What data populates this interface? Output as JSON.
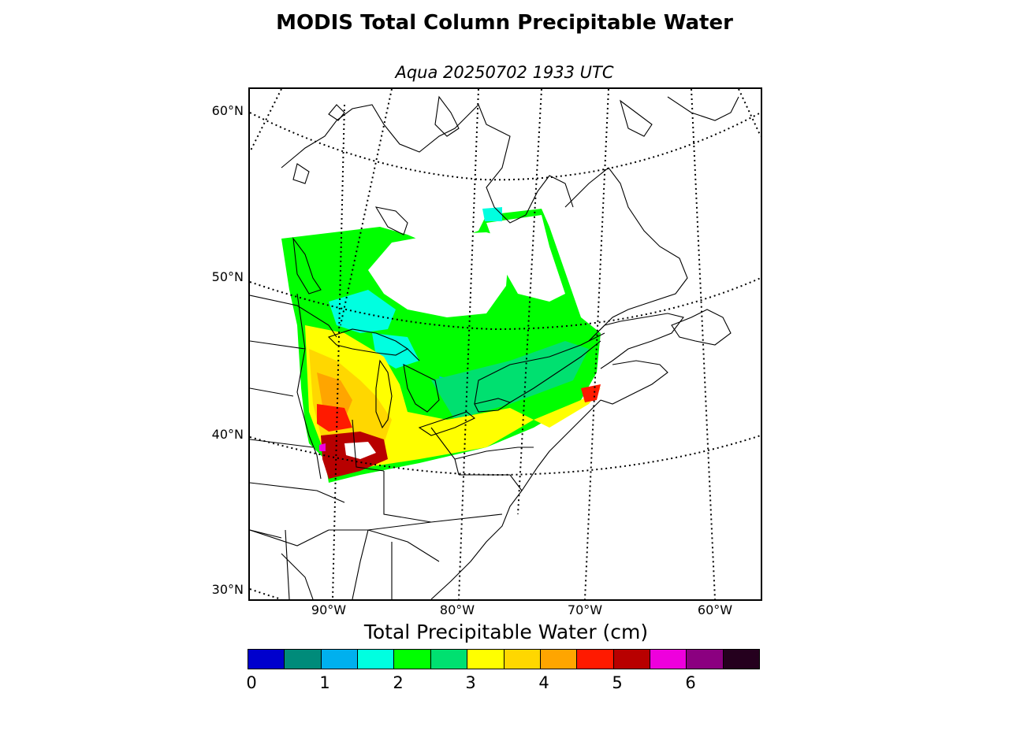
{
  "title": "MODIS Total Column Precipitable Water",
  "subtitle": "Aqua 20250702 1933 UTC",
  "map": {
    "lat_labels": [
      "60°N",
      "50°N",
      "40°N",
      "30°N"
    ],
    "lon_labels": [
      "90°W",
      "80°W",
      "70°W",
      "60°W"
    ]
  },
  "colorbar": {
    "title": "Total Precipitable Water (cm)",
    "ticks": [
      "0",
      "1",
      "2",
      "3",
      "4",
      "5",
      "6"
    ],
    "colors": [
      "#0000cd",
      "#008b7a",
      "#00b0ee",
      "#00ffe0",
      "#00ff00",
      "#00e070",
      "#ffff00",
      "#ffd700",
      "#ffa500",
      "#ff1a00",
      "#b80000",
      "#ee00dd",
      "#8b0080",
      "#25001e"
    ]
  }
}
